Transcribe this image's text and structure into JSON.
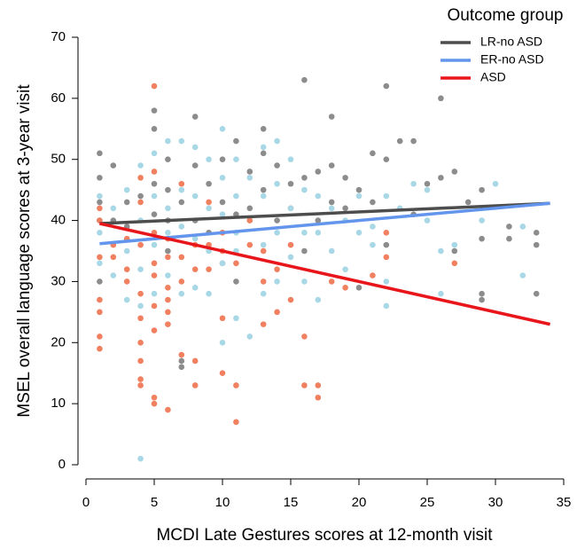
{
  "chart_data": {
    "type": "scatter",
    "x_label": "MCDI Late Gestures scores at 12-month visit",
    "y_label": "MSEL overall language scores at 3-year visit",
    "xlim": [
      0,
      35
    ],
    "ylim": [
      0,
      70
    ],
    "xticks": [
      0,
      5,
      10,
      15,
      20,
      25,
      30,
      35
    ],
    "yticks": [
      0,
      10,
      20,
      30,
      40,
      50,
      60,
      70
    ],
    "grid": false,
    "legend_title": "Outcome group",
    "legend": "topright",
    "series": [
      {
        "name": "LR-no ASD",
        "color": "#8c8c8c",
        "line_color": "#4d4d4d",
        "x": [
          1,
          1,
          1,
          1,
          1,
          2,
          2,
          3,
          3,
          4,
          5,
          5,
          5,
          5,
          6,
          6,
          6,
          6,
          7,
          7,
          7,
          8,
          8,
          8,
          9,
          9,
          10,
          10,
          10,
          11,
          11,
          11,
          12,
          12,
          13,
          13,
          13,
          14,
          14,
          15,
          15,
          16,
          16,
          16,
          17,
          17,
          18,
          18,
          18,
          19,
          19,
          20,
          20,
          21,
          21,
          22,
          22,
          22,
          23,
          24,
          24,
          25,
          26,
          26,
          27,
          27,
          28,
          29,
          29,
          29,
          29,
          31,
          31,
          33,
          33,
          33
        ],
        "values": [
          51,
          47,
          43,
          40,
          30,
          49,
          40,
          43,
          39,
          44,
          58,
          55,
          46,
          41,
          50,
          45,
          40,
          35,
          43,
          17,
          16,
          57,
          49,
          40,
          46,
          38,
          50,
          43,
          33,
          53,
          41,
          30,
          48,
          42,
          55,
          51,
          45,
          49,
          40,
          46,
          42,
          63,
          47,
          35,
          48,
          40,
          57,
          49,
          43,
          47,
          42,
          29,
          45,
          51,
          43,
          62,
          50,
          36,
          53,
          53,
          41,
          46,
          60,
          47,
          48,
          35,
          43,
          45,
          37,
          28,
          27,
          39,
          37,
          38,
          36,
          28
        ],
        "fit": {
          "x": [
            1,
            34
          ],
          "y": [
            39.5,
            42.8
          ]
        }
      },
      {
        "name": "ER-no ASD",
        "color": "#a8d8e6",
        "line_color": "#6495ed",
        "x": [
          1,
          1,
          1,
          2,
          2,
          3,
          3,
          3,
          4,
          4,
          4,
          4,
          4,
          5,
          5,
          5,
          5,
          6,
          6,
          6,
          6,
          7,
          7,
          7,
          7,
          8,
          8,
          8,
          8,
          9,
          9,
          9,
          9,
          10,
          10,
          10,
          10,
          10,
          11,
          11,
          11,
          11,
          11,
          12,
          12,
          12,
          13,
          13,
          13,
          13,
          14,
          14,
          14,
          14,
          15,
          15,
          15,
          16,
          16,
          16,
          17,
          17,
          17,
          18,
          18,
          19,
          19,
          20,
          20,
          21,
          21,
          22,
          22,
          22,
          23,
          24,
          25,
          25,
          26,
          26,
          27,
          29,
          30,
          32,
          32
        ],
        "values": [
          44,
          38,
          33,
          42,
          31,
          45,
          35,
          27,
          49,
          40,
          32,
          26,
          1,
          51,
          44,
          36,
          28,
          53,
          42,
          38,
          31,
          53,
          45,
          39,
          28,
          52,
          44,
          37,
          29,
          50,
          42,
          35,
          28,
          55,
          47,
          41,
          33,
          20,
          50,
          44,
          38,
          35,
          24,
          47,
          40,
          21,
          52,
          44,
          36,
          28,
          53,
          46,
          38,
          30,
          50,
          42,
          34,
          45,
          38,
          30,
          44,
          38,
          27,
          42,
          35,
          40,
          32,
          44,
          38,
          39,
          36,
          44,
          30,
          26,
          42,
          46,
          45,
          40,
          35,
          28,
          36,
          40,
          46,
          39,
          31
        ],
        "fit": {
          "x": [
            1,
            34
          ],
          "y": [
            36.2,
            42.8
          ]
        }
      },
      {
        "name": "ASD",
        "color": "#f08060",
        "line_color": "#e8161b",
        "x": [
          1,
          1,
          1,
          1,
          1,
          1,
          1,
          2,
          2,
          3,
          3,
          3,
          4,
          4,
          4,
          4,
          4,
          4,
          4,
          4,
          4,
          5,
          5,
          5,
          5,
          5,
          5,
          5,
          5,
          5,
          6,
          6,
          6,
          6,
          6,
          6,
          6,
          7,
          7,
          7,
          7,
          8,
          8,
          8,
          8,
          9,
          9,
          9,
          10,
          10,
          10,
          10,
          11,
          11,
          11,
          12,
          12,
          13,
          13,
          13,
          14,
          14,
          15,
          15,
          16,
          16,
          17,
          17,
          18,
          19,
          21,
          22,
          22,
          27
        ],
        "values": [
          42,
          40,
          34,
          27,
          25,
          21,
          19,
          36,
          34,
          37,
          32,
          30,
          47,
          43,
          36,
          28,
          24,
          20,
          17,
          14,
          13,
          62,
          48,
          38,
          33,
          31,
          26,
          22,
          11,
          10,
          37,
          34,
          29,
          27,
          25,
          23,
          9,
          46,
          34,
          30,
          18,
          36,
          32,
          17,
          13,
          43,
          36,
          32,
          38,
          35,
          24,
          15,
          33,
          13,
          7,
          40,
          36,
          35,
          30,
          23,
          32,
          25,
          36,
          27,
          21,
          13,
          13,
          11,
          30,
          29,
          31,
          38,
          34,
          33
        ],
        "fit": {
          "x": [
            1,
            34
          ],
          "y": [
            39.5,
            23
          ]
        }
      }
    ]
  }
}
